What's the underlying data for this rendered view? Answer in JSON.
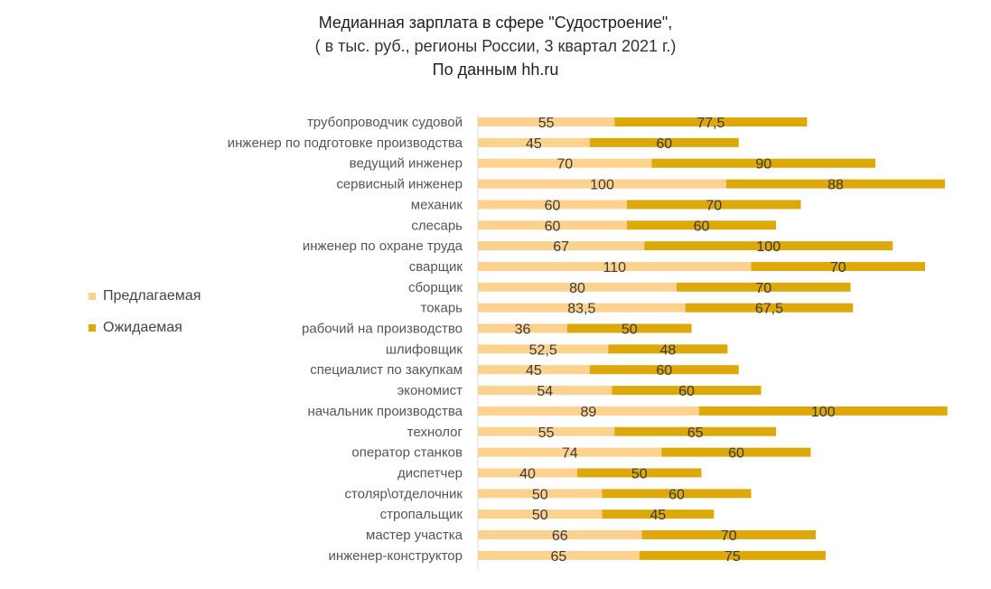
{
  "chart_data": {
    "type": "bar",
    "stacked": true,
    "orientation": "horizontal",
    "title": "Медианная зарплата в сфере \"Судостроение\",",
    "subtitle": "( в тыс. руб., регионы России, 3 квартал 2021 г.)",
    "source": "По данным hh.ru",
    "categories": [
      "трубопроводчик судовой",
      "инженер по подготовке производства",
      "ведущий инженер",
      "сервисный инженер",
      "механик",
      "слесарь",
      "инженер по охране труда",
      "сварщик",
      "сборщик",
      "токарь",
      "рабочий на производство",
      "шлифовщик",
      "специалист по закупкам",
      "экономист",
      "начальник производства",
      "технолог",
      "оператор станков",
      "диспетчер",
      "столяр\\отделочник",
      "стропальщик",
      "мастер участка",
      "инженер-конструктор"
    ],
    "series": [
      {
        "name": "Предлагаемая",
        "color": "#fdd28e",
        "values": [
          55,
          45,
          70,
          100,
          60,
          60,
          67,
          110,
          80,
          83.5,
          36,
          52.5,
          45,
          54,
          89,
          55,
          74,
          40,
          50,
          50,
          66,
          65
        ],
        "labels": [
          "55",
          "45",
          "70",
          "100",
          "60",
          "60",
          "67",
          "110",
          "80",
          "83,5",
          "36",
          "52,5",
          "45",
          "54",
          "89",
          "55",
          "74",
          "40",
          "50",
          "50",
          "66",
          "65"
        ]
      },
      {
        "name": "Ожидаемая",
        "color": "#dca80a",
        "values": [
          77.5,
          60,
          90,
          88,
          70,
          60,
          100,
          70,
          70,
          67.5,
          50,
          48,
          60,
          60,
          100,
          65,
          60,
          50,
          60,
          45,
          70,
          75
        ],
        "labels": [
          "77,5",
          "60",
          "90",
          "88",
          "70",
          "60",
          "100",
          "70",
          "70",
          "67,5",
          "50",
          "48",
          "60",
          "60",
          "100",
          "65",
          "60",
          "50",
          "60",
          "45",
          "70",
          "75"
        ]
      }
    ],
    "legend_position": "left",
    "grid": false
  }
}
